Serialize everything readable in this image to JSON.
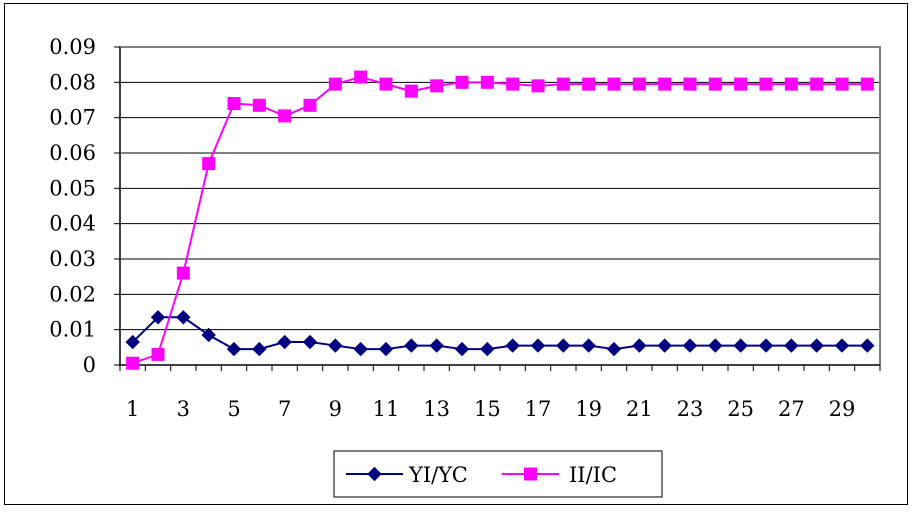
{
  "chart_data": {
    "type": "line",
    "title": "",
    "xlabel": "",
    "ylabel": "",
    "x": [
      1,
      2,
      3,
      4,
      5,
      6,
      7,
      8,
      9,
      10,
      11,
      12,
      13,
      14,
      15,
      16,
      17,
      18,
      19,
      20,
      21,
      22,
      23,
      24,
      25,
      26,
      27,
      28,
      29,
      30
    ],
    "x_tick_labels": [
      "1",
      "3",
      "5",
      "7",
      "9",
      "11",
      "13",
      "15",
      "17",
      "19",
      "21",
      "23",
      "25",
      "27",
      "29"
    ],
    "y_tick_labels": [
      "0",
      "0.01",
      "0.02",
      "0.03",
      "0.04",
      "0.05",
      "0.06",
      "0.07",
      "0.08",
      "0.09"
    ],
    "ylim": [
      0,
      0.09
    ],
    "grid": "horizontal",
    "legend_position": "bottom",
    "series": [
      {
        "name": "YI/YC",
        "color": "#000080",
        "marker": "diamond",
        "values": [
          0.0065,
          0.0135,
          0.0135,
          0.0085,
          0.0045,
          0.0045,
          0.0065,
          0.0065,
          0.0055,
          0.0045,
          0.0045,
          0.0055,
          0.0055,
          0.0045,
          0.0045,
          0.0055,
          0.0055,
          0.0055,
          0.0055,
          0.0045,
          0.0055,
          0.0055,
          0.0055,
          0.0055,
          0.0055,
          0.0055,
          0.0055,
          0.0055,
          0.0055,
          0.0055
        ]
      },
      {
        "name": "II/IC",
        "color": "#FF00FF",
        "marker": "square",
        "values": [
          0.0005,
          0.003,
          0.026,
          0.057,
          0.074,
          0.0735,
          0.0705,
          0.0735,
          0.0795,
          0.0815,
          0.0795,
          0.0775,
          0.079,
          0.08,
          0.08,
          0.0795,
          0.079,
          0.0795,
          0.0795,
          0.0795,
          0.0795,
          0.0795,
          0.0795,
          0.0795,
          0.0795,
          0.0795,
          0.0795,
          0.0795,
          0.0795,
          0.0795
        ]
      }
    ]
  }
}
